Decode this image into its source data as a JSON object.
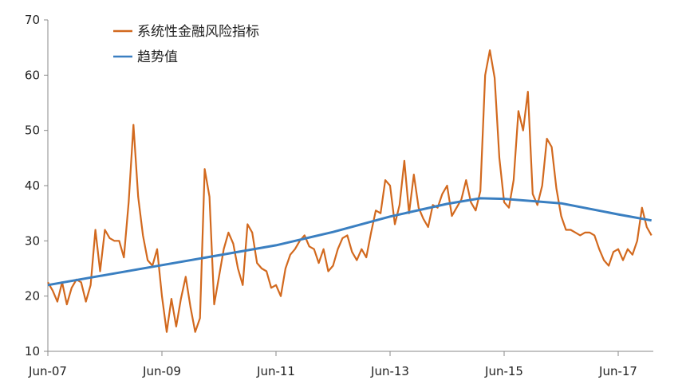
{
  "chart_data": {
    "type": "line",
    "title": "",
    "xlabel": "",
    "ylabel": "",
    "ylim": [
      10,
      70
    ],
    "yticks": [
      10,
      20,
      30,
      40,
      50,
      60,
      70
    ],
    "xlim": [
      "2007-06",
      "2017-11"
    ],
    "xtick_labels": [
      {
        "date": "2007-06",
        "label": "Jun-07"
      },
      {
        "date": "2009-06",
        "label": "Jun-09"
      },
      {
        "date": "2011-06",
        "label": "Jun-11"
      },
      {
        "date": "2013-06",
        "label": "Jun-13"
      },
      {
        "date": "2015-06",
        "label": "Jun-15"
      },
      {
        "date": "2017-06",
        "label": "Jun-17"
      }
    ],
    "grid": false,
    "legend_position": "top-left",
    "series": [
      {
        "name": "系统性金融风险指标",
        "color": "#D2691E",
        "points": [
          [
            "2007-06",
            22.5
          ],
          [
            "2007-07",
            21.0
          ],
          [
            "2007-08",
            19.0
          ],
          [
            "2007-09",
            22.5
          ],
          [
            "2007-10",
            18.5
          ],
          [
            "2007-11",
            21.5
          ],
          [
            "2007-12",
            23.0
          ],
          [
            "2008-01",
            22.5
          ],
          [
            "2008-02",
            19.0
          ],
          [
            "2008-03",
            22.0
          ],
          [
            "2008-04",
            32.0
          ],
          [
            "2008-05",
            24.5
          ],
          [
            "2008-06",
            32.0
          ],
          [
            "2008-07",
            30.5
          ],
          [
            "2008-08",
            30.0
          ],
          [
            "2008-09",
            30.0
          ],
          [
            "2008-10",
            27.0
          ],
          [
            "2008-11",
            37.0
          ],
          [
            "2008-12",
            51.0
          ],
          [
            "2009-01",
            38.0
          ],
          [
            "2009-02",
            31.0
          ],
          [
            "2009-03",
            26.5
          ],
          [
            "2009-04",
            25.5
          ],
          [
            "2009-05",
            28.5
          ],
          [
            "2009-06",
            20.0
          ],
          [
            "2009-07",
            13.5
          ],
          [
            "2009-08",
            19.5
          ],
          [
            "2009-09",
            14.5
          ],
          [
            "2009-10",
            19.5
          ],
          [
            "2009-11",
            23.5
          ],
          [
            "2009-12",
            18.0
          ],
          [
            "2010-01",
            13.5
          ],
          [
            "2010-02",
            16.0
          ],
          [
            "2010-03",
            43.0
          ],
          [
            "2010-04",
            38.0
          ],
          [
            "2010-05",
            18.5
          ],
          [
            "2010-06",
            23.5
          ],
          [
            "2010-07",
            28.5
          ],
          [
            "2010-08",
            31.5
          ],
          [
            "2010-09",
            29.5
          ],
          [
            "2010-10",
            25.0
          ],
          [
            "2010-11",
            22.0
          ],
          [
            "2010-12",
            33.0
          ],
          [
            "2011-01",
            31.5
          ],
          [
            "2011-02",
            26.0
          ],
          [
            "2011-03",
            25.0
          ],
          [
            "2011-04",
            24.5
          ],
          [
            "2011-05",
            21.5
          ],
          [
            "2011-06",
            22.0
          ],
          [
            "2011-07",
            20.0
          ],
          [
            "2011-08",
            25.0
          ],
          [
            "2011-09",
            27.5
          ],
          [
            "2011-10",
            28.5
          ],
          [
            "2011-11",
            30.0
          ],
          [
            "2011-12",
            31.0
          ],
          [
            "2012-01",
            29.0
          ],
          [
            "2012-02",
            28.5
          ],
          [
            "2012-03",
            26.0
          ],
          [
            "2012-04",
            28.5
          ],
          [
            "2012-05",
            24.5
          ],
          [
            "2012-06",
            25.5
          ],
          [
            "2012-07",
            28.5
          ],
          [
            "2012-08",
            30.5
          ],
          [
            "2012-09",
            31.0
          ],
          [
            "2012-10",
            28.0
          ],
          [
            "2012-11",
            26.5
          ],
          [
            "2012-12",
            28.5
          ],
          [
            "2013-01",
            27.0
          ],
          [
            "2013-02",
            31.5
          ],
          [
            "2013-03",
            35.5
          ],
          [
            "2013-04",
            35.0
          ],
          [
            "2013-05",
            41.0
          ],
          [
            "2013-06",
            40.0
          ],
          [
            "2013-07",
            33.0
          ],
          [
            "2013-08",
            36.5
          ],
          [
            "2013-09",
            44.5
          ],
          [
            "2013-10",
            35.0
          ],
          [
            "2013-11",
            42.0
          ],
          [
            "2013-12",
            36.0
          ],
          [
            "2014-01",
            34.0
          ],
          [
            "2014-02",
            32.5
          ],
          [
            "2014-03",
            36.5
          ],
          [
            "2014-04",
            36.0
          ],
          [
            "2014-05",
            38.5
          ],
          [
            "2014-06",
            40.0
          ],
          [
            "2014-07",
            34.5
          ],
          [
            "2014-08",
            36.0
          ],
          [
            "2014-09",
            37.5
          ],
          [
            "2014-10",
            41.0
          ],
          [
            "2014-11",
            37.0
          ],
          [
            "2014-12",
            35.5
          ],
          [
            "2015-01",
            39.0
          ],
          [
            "2015-02",
            60.0
          ],
          [
            "2015-03",
            64.5
          ],
          [
            "2015-04",
            59.5
          ],
          [
            "2015-05",
            45.0
          ],
          [
            "2015-06",
            37.0
          ],
          [
            "2015-07",
            36.0
          ],
          [
            "2015-08",
            41.0
          ],
          [
            "2015-09",
            53.5
          ],
          [
            "2015-10",
            50.0
          ],
          [
            "2015-11",
            57.0
          ],
          [
            "2015-12",
            38.5
          ],
          [
            "2016-01",
            36.5
          ],
          [
            "2016-02",
            40.0
          ],
          [
            "2016-03",
            48.5
          ],
          [
            "2016-04",
            47.0
          ],
          [
            "2016-05",
            39.5
          ],
          [
            "2016-06",
            34.5
          ],
          [
            "2016-07",
            32.0
          ],
          [
            "2016-08",
            32.0
          ],
          [
            "2016-09",
            31.5
          ],
          [
            "2016-10",
            31.0
          ],
          [
            "2016-11",
            31.5
          ],
          [
            "2016-12",
            31.5
          ],
          [
            "2017-01",
            31.0
          ],
          [
            "2017-02",
            28.5
          ],
          [
            "2017-03",
            26.5
          ],
          [
            "2017-04",
            25.5
          ],
          [
            "2017-05",
            28.0
          ],
          [
            "2017-06",
            28.5
          ],
          [
            "2017-07",
            26.5
          ],
          [
            "2017-08",
            28.5
          ],
          [
            "2017-09",
            27.5
          ],
          [
            "2017-10",
            30.0
          ],
          [
            "2017-11",
            36.0
          ],
          [
            "2017-12",
            32.5
          ],
          [
            "2018-01",
            31.0
          ]
        ]
      },
      {
        "name": "趋势值",
        "color": "#3A7FC1",
        "points": [
          [
            "2007-06",
            22.0
          ],
          [
            "2008-06",
            23.8
          ],
          [
            "2009-06",
            25.6
          ],
          [
            "2010-06",
            27.4
          ],
          [
            "2011-06",
            29.2
          ],
          [
            "2012-06",
            31.6
          ],
          [
            "2013-06",
            34.4
          ],
          [
            "2014-06",
            36.7
          ],
          [
            "2015-01",
            37.7
          ],
          [
            "2015-06",
            37.6
          ],
          [
            "2016-06",
            36.8
          ],
          [
            "2017-06",
            34.8
          ],
          [
            "2018-01",
            33.7
          ]
        ]
      }
    ]
  }
}
